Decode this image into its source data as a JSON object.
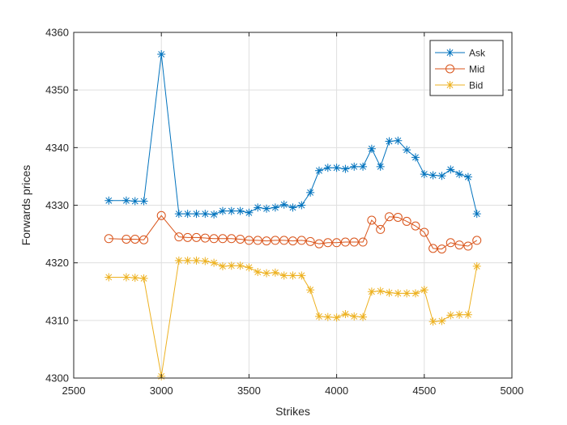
{
  "chart_data": {
    "type": "line",
    "title": "",
    "xlabel": "Strikes",
    "ylabel": "Forwards prices",
    "xlim": [
      2500,
      5000
    ],
    "ylim": [
      4300,
      4360
    ],
    "xticks": [
      2500,
      3000,
      3500,
      4000,
      4500,
      5000
    ],
    "yticks": [
      4300,
      4310,
      4320,
      4330,
      4340,
      4350,
      4360
    ],
    "grid": true,
    "legend_position": "top-right",
    "x": [
      2700,
      2800,
      2850,
      2900,
      3000,
      3100,
      3150,
      3200,
      3250,
      3300,
      3350,
      3400,
      3450,
      3500,
      3550,
      3600,
      3650,
      3700,
      3750,
      3800,
      3850,
      3900,
      3950,
      4000,
      4050,
      4100,
      4150,
      4200,
      4250,
      4300,
      4350,
      4400,
      4450,
      4500,
      4550,
      4600,
      4650,
      4700,
      4750,
      4800
    ],
    "series": [
      {
        "name": "Ask",
        "color": "#0072BD",
        "marker": "asterisk",
        "values": [
          4330.8,
          4330.8,
          4330.7,
          4330.7,
          4356.2,
          4328.5,
          4328.5,
          4328.5,
          4328.5,
          4328.4,
          4329.0,
          4329.0,
          4329.0,
          4328.7,
          4329.6,
          4329.4,
          4329.6,
          4330.1,
          4329.6,
          4330.0,
          4332.2,
          4336.0,
          4336.5,
          4336.5,
          4336.3,
          4336.7,
          4336.7,
          4339.8,
          4336.7,
          4341.1,
          4341.2,
          4339.6,
          4338.3,
          4335.4,
          4335.2,
          4335.1,
          4336.2,
          4335.4,
          4334.9,
          4328.5
        ]
      },
      {
        "name": "Mid",
        "color": "#D95319",
        "marker": "circle",
        "values": [
          4324.2,
          4324.1,
          4324.1,
          4324.0,
          4328.2,
          4324.5,
          4324.4,
          4324.4,
          4324.3,
          4324.2,
          4324.2,
          4324.2,
          4324.1,
          4323.9,
          4323.9,
          4323.8,
          4323.9,
          4323.9,
          4323.8,
          4323.9,
          4323.7,
          4323.3,
          4323.5,
          4323.5,
          4323.6,
          4323.6,
          4323.6,
          4327.4,
          4325.8,
          4328.0,
          4327.9,
          4327.2,
          4326.4,
          4325.3,
          4322.5,
          4322.4,
          4323.5,
          4323.1,
          4322.9,
          4323.9
        ]
      },
      {
        "name": "Bid",
        "color": "#EDB120",
        "marker": "asterisk",
        "values": [
          4317.5,
          4317.5,
          4317.4,
          4317.3,
          4300.3,
          4320.4,
          4320.4,
          4320.4,
          4320.3,
          4320.0,
          4319.4,
          4319.5,
          4319.5,
          4319.2,
          4318.4,
          4318.2,
          4318.3,
          4317.8,
          4317.8,
          4317.8,
          4315.3,
          4310.7,
          4310.6,
          4310.5,
          4311.1,
          4310.7,
          4310.6,
          4315.0,
          4315.1,
          4314.8,
          4314.7,
          4314.7,
          4314.7,
          4315.3,
          4309.8,
          4309.9,
          4310.9,
          4311.0,
          4311.0,
          4319.4
        ]
      }
    ]
  }
}
